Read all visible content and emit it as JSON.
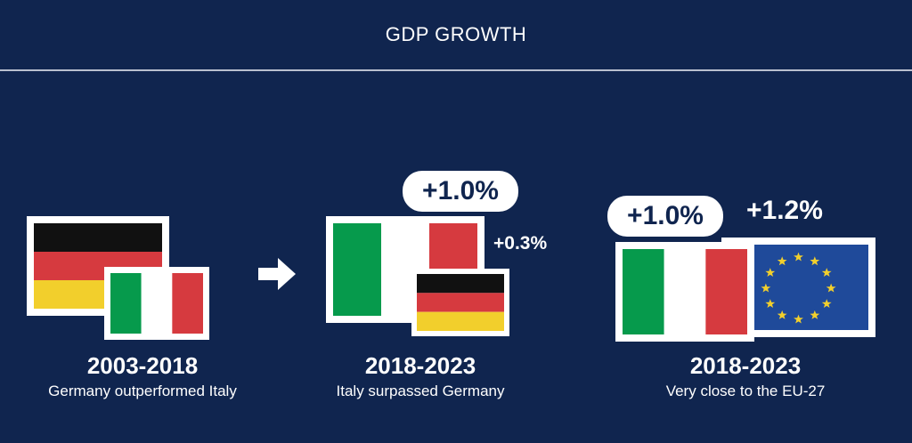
{
  "header": {
    "title": "GDP GROWTH"
  },
  "colors": {
    "background": "#10254f",
    "germany": [
      "#111111",
      "#d63a3f",
      "#f2cf2c"
    ],
    "italy": [
      "#069a4c",
      "#ffffff",
      "#d63a3f"
    ],
    "eu_blue": "#1f4a9a",
    "eu_stars": "#f2cf2c"
  },
  "panels": [
    {
      "period": "2003-2018",
      "caption": "Germany outperformed Italy"
    },
    {
      "period": "2018-2023",
      "caption": "Italy surpassed Germany",
      "italy_growth": "+1.0%",
      "germany_growth": "+0.3%"
    },
    {
      "period": "2018-2023",
      "caption": "Very close to the EU-27",
      "italy_growth": "+1.0%",
      "eu_growth": "+1.2%"
    }
  ]
}
